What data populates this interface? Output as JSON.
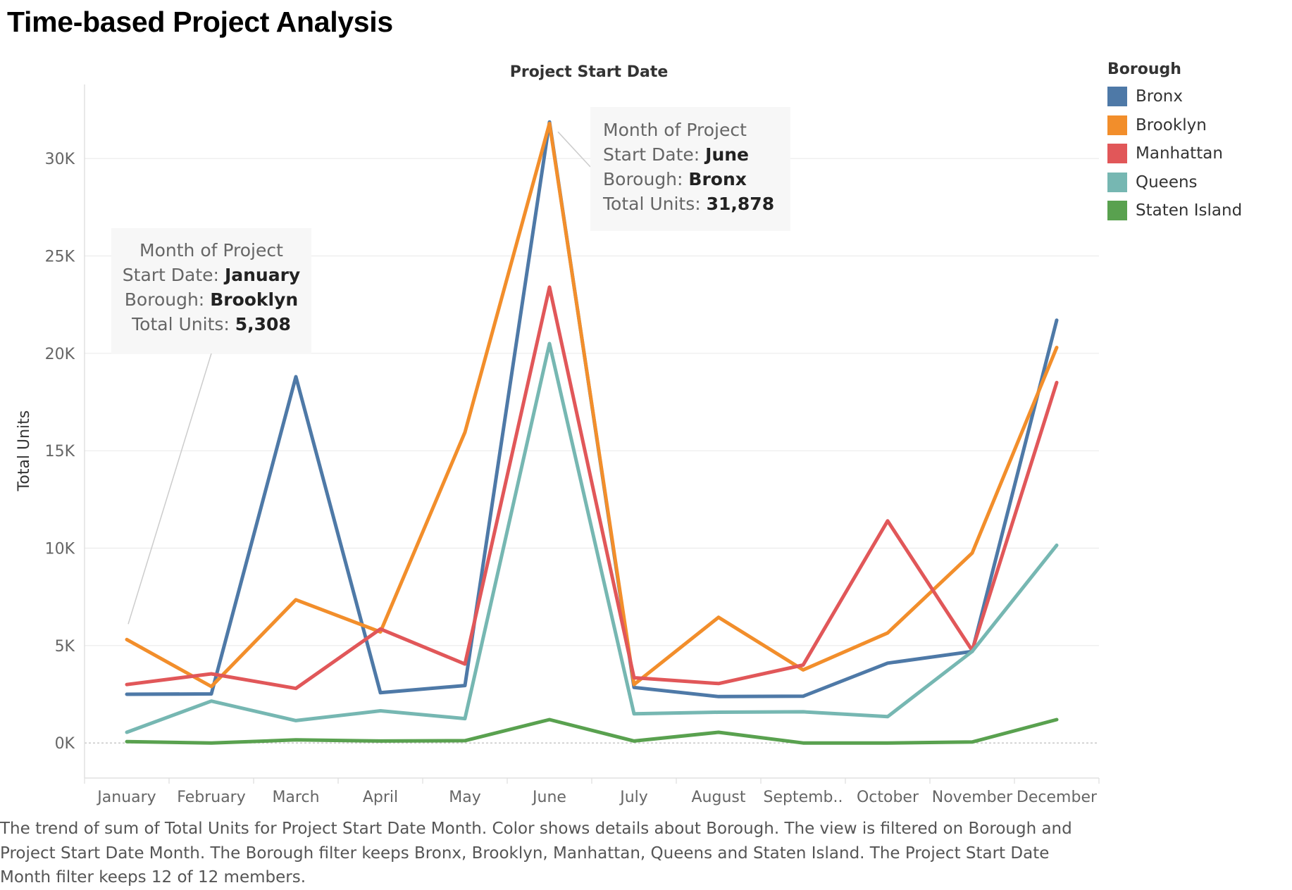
{
  "title": "Time-based Project Analysis",
  "chart_data": {
    "type": "line",
    "title": "Project Start Date",
    "xlabel": "",
    "ylabel": "Total Units",
    "categories": [
      "January",
      "February",
      "March",
      "April",
      "May",
      "June",
      "July",
      "August",
      "Septemb..",
      "October",
      "November",
      "December"
    ],
    "ylim": [
      -1800,
      33800
    ],
    "yticks": [
      0,
      5000,
      10000,
      15000,
      20000,
      25000,
      30000
    ],
    "ytick_labels": [
      "0K",
      "5K",
      "10K",
      "15K",
      "20K",
      "25K",
      "30K"
    ],
    "grid": true,
    "legend_position": "right",
    "series": [
      {
        "name": "Bronx",
        "color": "#4e79a7",
        "values": [
          2500,
          2520,
          18800,
          2580,
          2950,
          31878,
          2850,
          2380,
          2400,
          4100,
          4700,
          21700
        ]
      },
      {
        "name": "Brooklyn",
        "color": "#f28e2b",
        "values": [
          5308,
          2900,
          7350,
          5700,
          15950,
          31800,
          3000,
          6450,
          3750,
          5650,
          9750,
          20300
        ]
      },
      {
        "name": "Manhattan",
        "color": "#e15759",
        "values": [
          3000,
          3550,
          2800,
          5850,
          4050,
          23400,
          3350,
          3050,
          4000,
          11400,
          4750,
          18500
        ]
      },
      {
        "name": "Queens",
        "color": "#76b7b2",
        "values": [
          550,
          2150,
          1150,
          1650,
          1250,
          20500,
          1500,
          1580,
          1600,
          1350,
          4700,
          10150
        ]
      },
      {
        "name": "Staten Island",
        "color": "#59a14f",
        "values": [
          70,
          0,
          160,
          100,
          120,
          1200,
          100,
          550,
          0,
          0,
          50,
          1200
        ]
      }
    ]
  },
  "legend": {
    "title": "Borough",
    "items": [
      {
        "label": "Bronx",
        "color": "#4e79a7"
      },
      {
        "label": "Brooklyn",
        "color": "#f28e2b"
      },
      {
        "label": "Manhattan",
        "color": "#e15759"
      },
      {
        "label": "Queens",
        "color": "#76b7b2"
      },
      {
        "label": "Staten Island",
        "color": "#59a14f"
      }
    ]
  },
  "tooltips": {
    "january": {
      "month_label_1": "Month of Project",
      "month_label_2": "Start Date: ",
      "month_value": "January",
      "borough_label": "Borough: ",
      "borough_value": "Brooklyn",
      "units_label": "Total Units: ",
      "units_value": "5,308"
    },
    "june": {
      "month_label_1": "Month of Project",
      "month_label_2": "Start Date: ",
      "month_value": "June",
      "borough_label": "Borough: ",
      "borough_value": "Bronx",
      "units_label": "Total Units: ",
      "units_value": "31,878"
    }
  },
  "caption": "The trend of sum of Total Units for Project Start Date Month.  Color shows details about Borough. The view is filtered on Borough and Project Start Date Month. The Borough filter keeps Bronx, Brooklyn, Manhattan, Queens and Staten Island. The Project Start Date Month filter keeps 12 of 12 members."
}
